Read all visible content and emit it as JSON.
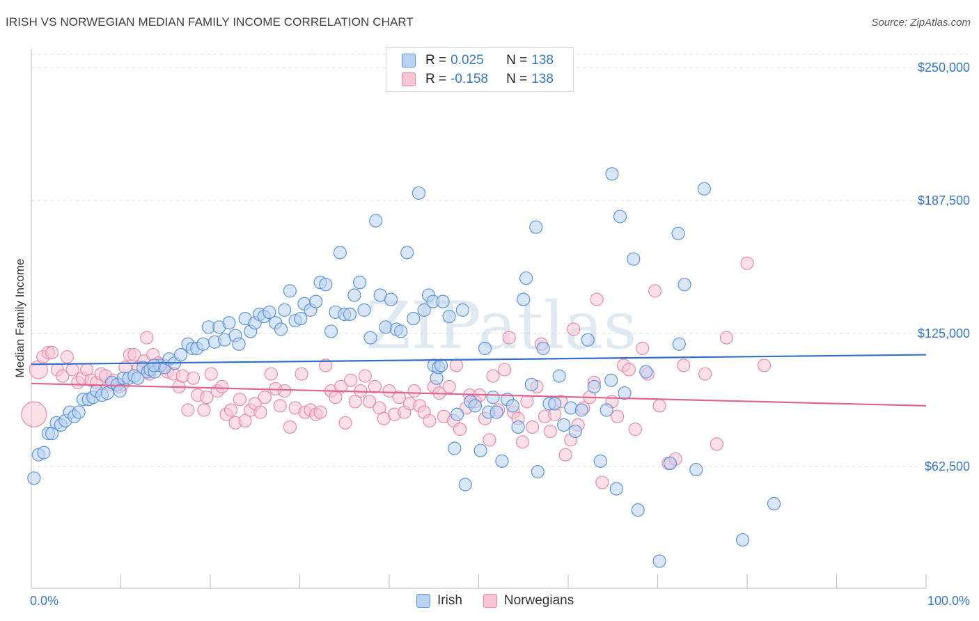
{
  "title": "IRISH VS NORWEGIAN MEDIAN FAMILY INCOME CORRELATION CHART",
  "source": "Source: ZipAtlas.com",
  "legend_top": {
    "rows": [
      {
        "r_label": "R = ",
        "r_value": "0.025",
        "n_label": "N = ",
        "n_value": "138",
        "color": "#6fa3e0"
      },
      {
        "r_label": "R = ",
        "r_value": "-0.158",
        "n_label": "N = ",
        "n_value": "138",
        "color": "#ef8fae"
      }
    ]
  },
  "legend_bottom": [
    "Irish",
    "Norwegians"
  ],
  "watermark": "ZIPatlas",
  "colors": {
    "irish_fill": "#b9d2f2",
    "irish_stroke": "#5b93da",
    "irish_line": "#2f6fca",
    "norw_fill": "#f7c6d5",
    "norw_stroke": "#e88aa8",
    "norw_line": "#e0648e",
    "axis_label": "#3a77c4"
  },
  "chart_data": {
    "type": "scatter",
    "title": "IRISH VS NORWEGIAN MEDIAN FAMILY INCOME CORRELATION CHART",
    "xlabel": "",
    "ylabel": "Median Family Income",
    "xlim": [
      0,
      100
    ],
    "ylim": [
      0,
      255000
    ],
    "x_tick_labels": [
      "0.0%",
      "100.0%"
    ],
    "y_ticks": [
      62500,
      125000,
      187500,
      250000
    ],
    "y_tick_labels": [
      "$62,500",
      "$125,000",
      "$187,500",
      "$250,000"
    ],
    "grid": "horizontal dashed",
    "legend": "top-center",
    "series": [
      {
        "name": "Irish",
        "R": 0.025,
        "N": 138,
        "trend": {
          "x": [
            0,
            100
          ],
          "y": [
            110500,
            115000
          ]
        },
        "points": [
          [
            0.3,
            57000
          ],
          [
            0.8,
            68000
          ],
          [
            1.4,
            69000
          ],
          [
            1.9,
            78000
          ],
          [
            2.3,
            78000
          ],
          [
            2.8,
            83000
          ],
          [
            3.3,
            82000
          ],
          [
            3.8,
            84000
          ],
          [
            4.3,
            88000
          ],
          [
            4.8,
            86000
          ],
          [
            5.3,
            88000
          ],
          [
            5.8,
            94000
          ],
          [
            6.4,
            94000
          ],
          [
            6.9,
            95000
          ],
          [
            7.3,
            98000
          ],
          [
            7.9,
            96000
          ],
          [
            8.5,
            97000
          ],
          [
            9.0,
            102000
          ],
          [
            9.6,
            101000
          ],
          [
            9.9,
            98000
          ],
          [
            10.3,
            104000
          ],
          [
            10.9,
            104000
          ],
          [
            11.5,
            105000
          ],
          [
            11.9,
            104000
          ],
          [
            12.5,
            109000
          ],
          [
            13.0,
            107000
          ],
          [
            13.3,
            108000
          ],
          [
            13.8,
            107000
          ],
          [
            14.4,
            110000
          ],
          [
            14.9,
            109000
          ],
          [
            15.4,
            113000
          ],
          [
            16.0,
            111000
          ],
          [
            16.7,
            115000
          ],
          [
            17.5,
            120000
          ],
          [
            18.0,
            118000
          ],
          [
            18.5,
            118000
          ],
          [
            19.2,
            120000
          ],
          [
            19.8,
            128000
          ],
          [
            20.5,
            121000
          ],
          [
            21.0,
            128000
          ],
          [
            21.6,
            122000
          ],
          [
            22.1,
            130000
          ],
          [
            22.8,
            124000
          ],
          [
            23.2,
            120000
          ],
          [
            23.9,
            132000
          ],
          [
            24.5,
            126000
          ],
          [
            25.0,
            130000
          ],
          [
            25.5,
            134000
          ],
          [
            26.0,
            133000
          ],
          [
            26.6,
            135000
          ],
          [
            27.3,
            130000
          ],
          [
            27.9,
            127000
          ],
          [
            28.3,
            136000
          ],
          [
            28.9,
            145000
          ],
          [
            29.5,
            131000
          ],
          [
            30.1,
            132000
          ],
          [
            30.5,
            139000
          ],
          [
            31.2,
            136000
          ],
          [
            31.8,
            140000
          ],
          [
            32.3,
            149000
          ],
          [
            32.9,
            148000
          ],
          [
            33.5,
            126000
          ],
          [
            34.0,
            135000
          ],
          [
            34.5,
            163000
          ],
          [
            35.0,
            134000
          ],
          [
            35.6,
            134000
          ],
          [
            36.1,
            143000
          ],
          [
            36.7,
            149000
          ],
          [
            37.2,
            136000
          ],
          [
            37.9,
            123000
          ],
          [
            38.5,
            178000
          ],
          [
            39.0,
            143000
          ],
          [
            39.6,
            128000
          ],
          [
            40.2,
            141000
          ],
          [
            40.8,
            127000
          ],
          [
            41.3,
            126000
          ],
          [
            42.0,
            163000
          ],
          [
            42.7,
            132000
          ],
          [
            43.3,
            191000
          ],
          [
            43.9,
            136000
          ],
          [
            44.4,
            143000
          ],
          [
            44.9,
            140000
          ],
          [
            45.0,
            110000
          ],
          [
            45.3,
            104000
          ],
          [
            45.5,
            109000
          ],
          [
            46.0,
            140000
          ],
          [
            46.7,
            133000
          ],
          [
            47.3,
            71000
          ],
          [
            47.6,
            87000
          ],
          [
            48.2,
            136000
          ],
          [
            48.5,
            54000
          ],
          [
            49.1,
            93000
          ],
          [
            49.6,
            91000
          ],
          [
            50.2,
            70000
          ],
          [
            50.7,
            118000
          ],
          [
            51.1,
            88000
          ],
          [
            51.6,
            95000
          ],
          [
            52.0,
            88000
          ],
          [
            52.6,
            65000
          ],
          [
            53.2,
            94000
          ],
          [
            53.8,
            91000
          ],
          [
            54.4,
            81000
          ],
          [
            55.0,
            141000
          ],
          [
            55.3,
            151000
          ],
          [
            55.9,
            101000
          ],
          [
            56.4,
            175000
          ],
          [
            56.6,
            60000
          ],
          [
            57.2,
            118000
          ],
          [
            57.9,
            92000
          ],
          [
            58.5,
            92000
          ],
          [
            59.0,
            105000
          ],
          [
            59.5,
            82000
          ],
          [
            60.3,
            90000
          ],
          [
            60.8,
            79000
          ],
          [
            61.5,
            89000
          ],
          [
            62.2,
            122000
          ],
          [
            62.9,
            100000
          ],
          [
            63.6,
            65000
          ],
          [
            64.3,
            89000
          ],
          [
            64.8,
            103000
          ],
          [
            64.9,
            200000
          ],
          [
            65.4,
            52000
          ],
          [
            65.8,
            180000
          ],
          [
            66.3,
            97000
          ],
          [
            67.3,
            160000
          ],
          [
            67.8,
            42000
          ],
          [
            68.7,
            107000
          ],
          [
            70.2,
            18000
          ],
          [
            71.4,
            64000
          ],
          [
            72.3,
            172000
          ],
          [
            72.4,
            120000
          ],
          [
            73.0,
            148000
          ],
          [
            74.3,
            61000
          ],
          [
            75.2,
            193000
          ],
          [
            79.5,
            28000
          ],
          [
            83.0,
            45000
          ],
          [
            45.8,
            110000
          ],
          [
            13.7,
            110000
          ]
        ]
      },
      {
        "name": "Norwegians",
        "R": -0.158,
        "N": 138,
        "trend": {
          "x": [
            0,
            100
          ],
          "y": [
            101500,
            91000
          ]
        },
        "points": [
          [
            0.3,
            87000
          ],
          [
            0.8,
            108000
          ],
          [
            1.3,
            114000
          ],
          [
            1.9,
            116000
          ],
          [
            2.3,
            116000
          ],
          [
            2.9,
            108000
          ],
          [
            3.5,
            105000
          ],
          [
            4.0,
            114000
          ],
          [
            4.6,
            108000
          ],
          [
            5.2,
            102000
          ],
          [
            5.7,
            104000
          ],
          [
            6.2,
            108000
          ],
          [
            6.7,
            103000
          ],
          [
            7.3,
            102000
          ],
          [
            7.8,
            106000
          ],
          [
            8.3,
            105000
          ],
          [
            8.8,
            101000
          ],
          [
            9.2,
            103000
          ],
          [
            9.8,
            100000
          ],
          [
            10.2,
            101000
          ],
          [
            10.5,
            109000
          ],
          [
            11.0,
            115000
          ],
          [
            11.5,
            115000
          ],
          [
            12.0,
            109000
          ],
          [
            12.6,
            112000
          ],
          [
            12.9,
            123000
          ],
          [
            13.2,
            106000
          ],
          [
            13.6,
            115000
          ],
          [
            14.2,
            111000
          ],
          [
            14.8,
            110000
          ],
          [
            15.2,
            107000
          ],
          [
            15.9,
            106000
          ],
          [
            16.5,
            100000
          ],
          [
            16.9,
            105000
          ],
          [
            17.5,
            89000
          ],
          [
            18.1,
            104000
          ],
          [
            18.6,
            96000
          ],
          [
            19.3,
            89000
          ],
          [
            19.6,
            95000
          ],
          [
            20.1,
            106000
          ],
          [
            20.8,
            98000
          ],
          [
            21.3,
            100000
          ],
          [
            21.8,
            87000
          ],
          [
            22.3,
            89000
          ],
          [
            22.8,
            83000
          ],
          [
            23.3,
            94000
          ],
          [
            23.9,
            84000
          ],
          [
            24.5,
            89000
          ],
          [
            25.0,
            92000
          ],
          [
            25.6,
            88000
          ],
          [
            26.1,
            95000
          ],
          [
            26.8,
            106000
          ],
          [
            27.3,
            99000
          ],
          [
            27.8,
            91000
          ],
          [
            28.3,
            98000
          ],
          [
            28.9,
            81000
          ],
          [
            29.5,
            90000
          ],
          [
            30.2,
            106000
          ],
          [
            30.6,
            88000
          ],
          [
            31.2,
            89000
          ],
          [
            31.8,
            87000
          ],
          [
            32.3,
            88000
          ],
          [
            32.9,
            110000
          ],
          [
            33.5,
            98000
          ],
          [
            34.0,
            95000
          ],
          [
            34.6,
            100000
          ],
          [
            35.1,
            83000
          ],
          [
            35.7,
            103000
          ],
          [
            36.2,
            93000
          ],
          [
            36.8,
            98000
          ],
          [
            37.3,
            105000
          ],
          [
            37.8,
            93000
          ],
          [
            38.4,
            100000
          ],
          [
            38.9,
            90000
          ],
          [
            39.4,
            85000
          ],
          [
            40.0,
            98000
          ],
          [
            40.6,
            87000
          ],
          [
            41.1,
            95000
          ],
          [
            41.7,
            88000
          ],
          [
            42.3,
            92000
          ],
          [
            42.8,
            98000
          ],
          [
            43.4,
            91000
          ],
          [
            43.9,
            88000
          ],
          [
            44.5,
            84000
          ],
          [
            45.0,
            100000
          ],
          [
            45.6,
            97000
          ],
          [
            46.1,
            86000
          ],
          [
            46.7,
            100000
          ],
          [
            47.2,
            84000
          ],
          [
            47.5,
            110000
          ],
          [
            47.9,
            80000
          ],
          [
            48.6,
            90000
          ],
          [
            49.0,
            96000
          ],
          [
            49.6,
            93000
          ],
          [
            50.1,
            96000
          ],
          [
            50.7,
            85000
          ],
          [
            51.2,
            75000
          ],
          [
            51.6,
            105000
          ],
          [
            52.2,
            89000
          ],
          [
            52.9,
            108000
          ],
          [
            53.4,
            123000
          ],
          [
            53.9,
            88000
          ],
          [
            54.4,
            85000
          ],
          [
            54.9,
            74000
          ],
          [
            55.4,
            93000
          ],
          [
            56.0,
            81000
          ],
          [
            56.5,
            100000
          ],
          [
            57.0,
            120000
          ],
          [
            57.4,
            86000
          ],
          [
            58.0,
            79000
          ],
          [
            58.5,
            87000
          ],
          [
            59.2,
            93000
          ],
          [
            59.7,
            68000
          ],
          [
            60.3,
            75000
          ],
          [
            60.6,
            127000
          ],
          [
            61.1,
            82000
          ],
          [
            61.7,
            90000
          ],
          [
            62.4,
            95000
          ],
          [
            62.9,
            102000
          ],
          [
            63.2,
            141000
          ],
          [
            63.8,
            55000
          ],
          [
            64.9,
            93000
          ],
          [
            65.5,
            86000
          ],
          [
            66.2,
            110000
          ],
          [
            66.8,
            108000
          ],
          [
            67.5,
            80000
          ],
          [
            68.3,
            118000
          ],
          [
            68.9,
            106000
          ],
          [
            69.7,
            145000
          ],
          [
            70.2,
            91000
          ],
          [
            71.2,
            64000
          ],
          [
            72.0,
            66000
          ],
          [
            72.9,
            110000
          ],
          [
            75.3,
            106000
          ],
          [
            76.6,
            73000
          ],
          [
            77.7,
            123000
          ],
          [
            80.0,
            158000
          ],
          [
            81.9,
            110000
          ]
        ]
      }
    ]
  }
}
